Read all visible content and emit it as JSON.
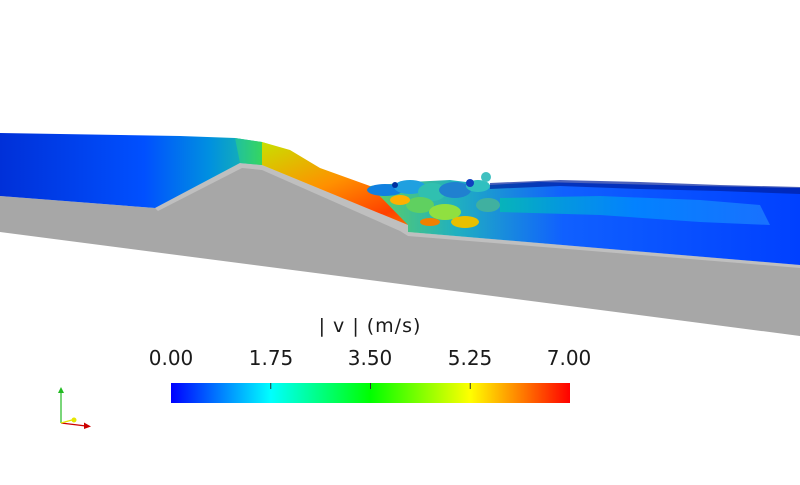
{
  "colorbar": {
    "title": "| v |  (m/s)",
    "ticks": [
      "0.00",
      "1.75",
      "3.50",
      "5.25",
      "7.00"
    ],
    "range": [
      0,
      7
    ],
    "colormap": [
      "#0000ff",
      "#0080ff",
      "#00ffff",
      "#00ff80",
      "#00ff00",
      "#80ff00",
      "#ffff00",
      "#ff8000",
      "#ff0000"
    ]
  },
  "scene": {
    "ground_color": "#a7a7a7",
    "ground_edge_color": "#d6d6d6",
    "background": "#ffffff"
  },
  "axes_triad": {
    "colors": {
      "x": "#cc0000",
      "y": "#22bb22",
      "z": "#e6e600"
    }
  }
}
